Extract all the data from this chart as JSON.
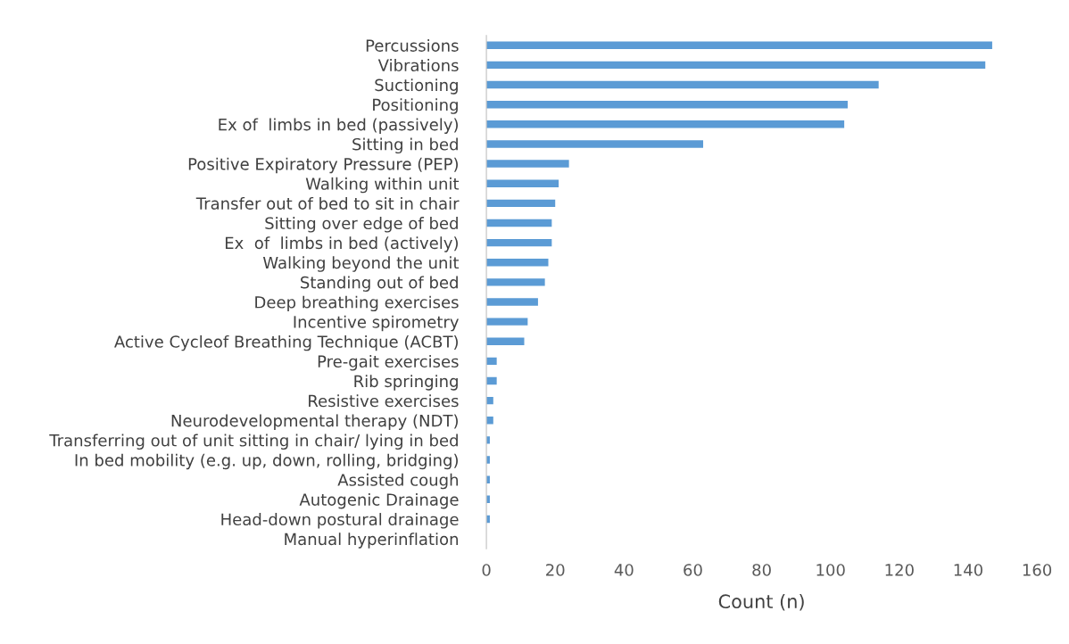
{
  "chart_data": {
    "type": "bar",
    "orientation": "horizontal",
    "xlabel": "Count (n)",
    "categories": [
      "Percussions",
      "Vibrations",
      "Suctioning",
      "Positioning",
      "Ex of  limbs in bed (passively)",
      "Sitting in bed",
      "Positive Expiratory Pressure (PEP)",
      "Walking within unit",
      "Transfer out of bed to sit in chair",
      "Sitting over edge of bed",
      "Ex  of  limbs in bed (actively)",
      "Walking beyond the unit",
      "Standing out of bed",
      "Deep breathing exercises",
      "Incentive spirometry",
      "Active Cycleof Breathing Technique (ACBT)",
      "Pre-gait exercises",
      "Rib springing",
      "Resistive exercises",
      "Neurodevelopmental therapy (NDT)",
      "Transferring out of unit sitting in chair/ lying in bed",
      "In bed mobility (e.g. up, down, rolling, bridging)",
      "Assisted cough",
      "Autogenic Drainage",
      "Head-down postural drainage",
      "Manual hyperinflation"
    ],
    "values": [
      147,
      145,
      114,
      105,
      104,
      63,
      24,
      21,
      20,
      19,
      19,
      18,
      17,
      15,
      12,
      11,
      3,
      3,
      2,
      2,
      1,
      1,
      1,
      1,
      1,
      0
    ],
    "color": "#5b9bd5",
    "xlim": [
      0,
      160
    ],
    "xticks": [
      0,
      20,
      40,
      60,
      80,
      100,
      120,
      140,
      160
    ],
    "grid": false,
    "legend": false
  }
}
